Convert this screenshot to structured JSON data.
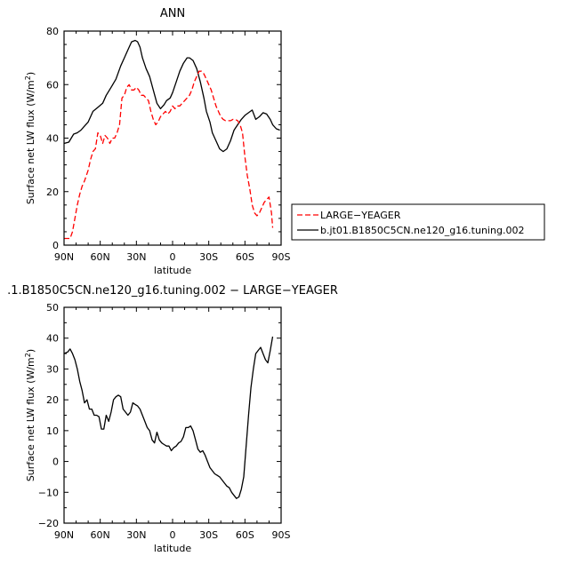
{
  "chart_data": [
    {
      "type": "line",
      "title": "ANN",
      "xlabel": "latitude",
      "ylabel_main": "Surface net LW flux (W/m",
      "ylabel_sup": "2",
      "ylabel_tail": ")",
      "xlim": [
        90,
        -90
      ],
      "ylim": [
        0,
        80
      ],
      "xticks": [
        {
          "v": 90,
          "label": "90N"
        },
        {
          "v": 60,
          "label": "60N"
        },
        {
          "v": 30,
          "label": "30N"
        },
        {
          "v": 0,
          "label": "0"
        },
        {
          "v": -30,
          "label": "30S"
        },
        {
          "v": -60,
          "label": "60S"
        },
        {
          "v": -90,
          "label": "90S"
        }
      ],
      "yticks": [
        0,
        20,
        40,
        60,
        80
      ],
      "legend": {
        "placement": "right",
        "entries": [
          {
            "label": "LARGE−YEAGER",
            "color": "#ff0000",
            "dash": true
          },
          {
            "label": "b.jt01.B1850C5CN.ne120_g16.tuning.002",
            "color": "#000000",
            "dash": false
          }
        ]
      },
      "series": [
        {
          "color": "#000000",
          "dash": false,
          "x": [
            90,
            86,
            84,
            82,
            79,
            76,
            73,
            70,
            66,
            62,
            58,
            55,
            51,
            47,
            43,
            40,
            37,
            34,
            31,
            29,
            27,
            25,
            22,
            19,
            16,
            13,
            10,
            7,
            5,
            2,
            0,
            -3,
            -6,
            -9,
            -12,
            -14,
            -17,
            -20,
            -23,
            -26,
            -28,
            -31,
            -33,
            -36,
            -39,
            -42,
            -45,
            -48,
            -51,
            -54,
            -57,
            -60,
            -63,
            -66,
            -69,
            -72,
            -75,
            -78,
            -81,
            -83,
            -86,
            -89
          ],
          "y": [
            38,
            38.5,
            40,
            41.5,
            42,
            43,
            44.5,
            46,
            50,
            51.5,
            53,
            56,
            59,
            62,
            67,
            70,
            73,
            76,
            76.5,
            76,
            74,
            70,
            66,
            63,
            58,
            53,
            51,
            52.5,
            54,
            55,
            57,
            61,
            65,
            68,
            70,
            70,
            69,
            66,
            61,
            55,
            50,
            46,
            42,
            39,
            36,
            35,
            36,
            39,
            43,
            45,
            47,
            48.5,
            49.5,
            50.5,
            47,
            48,
            49.5,
            49,
            47,
            45,
            43.5,
            43
          ]
        },
        {
          "color": "#ff0000",
          "dash": true,
          "x": [
            90,
            87,
            85,
            83,
            81,
            79,
            77,
            75,
            73,
            70,
            68,
            66,
            64,
            62,
            60,
            58,
            56,
            54,
            52,
            50,
            48,
            46,
            44,
            42,
            40,
            38,
            36,
            34,
            32,
            30,
            28,
            26,
            24,
            22,
            20,
            18,
            16,
            14,
            12,
            10,
            8,
            6,
            4,
            2,
            0,
            -2,
            -4,
            -6,
            -8,
            -10,
            -12,
            -14,
            -16,
            -18,
            -20,
            -22,
            -24,
            -26,
            -28,
            -30,
            -32,
            -34,
            -36,
            -38,
            -40,
            -42,
            -44,
            -46,
            -48,
            -50,
            -52,
            -54,
            -56,
            -58,
            -60,
            -62,
            -64,
            -66,
            -68,
            -70,
            -72,
            -74,
            -76,
            -78,
            -80,
            -82,
            -83
          ],
          "y": [
            2.5,
            2.5,
            2.5,
            5,
            10,
            15,
            19,
            22,
            24,
            28,
            32,
            35,
            36,
            42,
            41,
            38,
            41,
            40,
            38,
            40,
            40,
            42,
            45,
            55,
            56,
            59,
            60,
            58,
            58,
            59,
            58,
            56,
            56,
            55,
            54,
            50,
            47,
            45,
            46,
            48,
            49,
            50,
            49,
            50,
            52,
            51,
            52,
            52,
            53,
            54,
            55,
            56,
            58,
            61,
            63,
            65,
            65,
            64,
            62,
            60,
            58,
            55,
            52,
            50,
            48,
            47,
            46.5,
            46.5,
            46.5,
            47,
            47,
            46.5,
            45,
            42,
            33,
            26,
            21,
            15,
            12,
            11,
            12,
            14,
            16,
            17,
            18,
            12,
            6.5
          ]
        }
      ]
    },
    {
      "type": "line",
      "title": ".1.B1850C5CN.ne120_g16.tuning.002 − LARGE−YEAGER",
      "xlabel": "latitude",
      "ylabel_main": "Surface net LW flux (W/m",
      "ylabel_sup": "2",
      "ylabel_tail": ")",
      "xlim": [
        90,
        -90
      ],
      "ylim": [
        -20,
        50
      ],
      "xticks": [
        {
          "v": 90,
          "label": "90N"
        },
        {
          "v": 60,
          "label": "60N"
        },
        {
          "v": 30,
          "label": "30N"
        },
        {
          "v": 0,
          "label": "0"
        },
        {
          "v": -30,
          "label": "30S"
        },
        {
          "v": -60,
          "label": "60S"
        },
        {
          "v": -90,
          "label": "90S"
        }
      ],
      "yticks": [
        -20,
        -10,
        0,
        10,
        20,
        30,
        40,
        50
      ],
      "series": [
        {
          "color": "#000000",
          "dash": false,
          "x": [
            90,
            87,
            85,
            83,
            81,
            79,
            77,
            75,
            73,
            71,
            69,
            67,
            65,
            63,
            61,
            59,
            57,
            55,
            53,
            51,
            49,
            47,
            45,
            43,
            41,
            39,
            37,
            35,
            33,
            31,
            29,
            27,
            25,
            23,
            21,
            19,
            17,
            15,
            13,
            11,
            9,
            7,
            5,
            3,
            1,
            -1,
            -3,
            -5,
            -7,
            -9,
            -11,
            -13,
            -15,
            -17,
            -19,
            -21,
            -23,
            -25,
            -27,
            -29,
            -31,
            -33,
            -35,
            -37,
            -39,
            -41,
            -43,
            -45,
            -47,
            -49,
            -51,
            -53,
            -55,
            -57,
            -59,
            -61,
            -63,
            -65,
            -67,
            -69,
            -71,
            -73,
            -75,
            -77,
            -79,
            -81,
            -83
          ],
          "y": [
            35,
            35.5,
            36.5,
            35,
            33,
            30,
            26,
            23,
            19,
            20,
            17,
            17,
            15,
            15,
            14.5,
            10.5,
            10.5,
            15,
            13,
            16,
            20,
            21,
            21.5,
            21,
            17,
            16,
            15,
            16,
            19,
            18.5,
            18,
            17,
            15,
            13,
            11,
            10,
            7,
            6,
            9.5,
            7,
            6,
            5.5,
            5,
            5,
            3.5,
            4.5,
            5,
            6,
            6.5,
            8,
            11,
            11,
            11.5,
            10,
            7,
            4,
            3,
            3.5,
            2,
            0,
            -2,
            -3,
            -4,
            -4.5,
            -5,
            -6,
            -7,
            -8,
            -8.5,
            -10,
            -11,
            -12,
            -11.5,
            -9,
            -5,
            5,
            15,
            24,
            30,
            35,
            36,
            37,
            35,
            33,
            32,
            36,
            40.5
          ]
        }
      ]
    }
  ]
}
